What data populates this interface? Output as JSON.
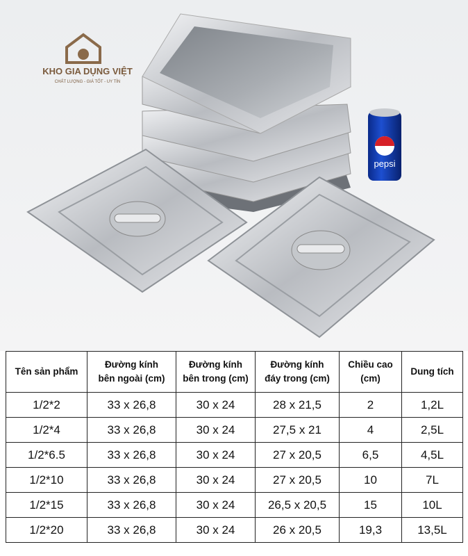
{
  "logo": {
    "name": "KHO GIA DỤNG VIỆT",
    "tagline": "CHẤT LƯỢNG - GIÁ TỐT - UY TÍN"
  },
  "can_label": "pepsi",
  "table": {
    "headers": [
      [
        "Tên sản phẩm"
      ],
      [
        "Đường kính",
        "bên ngoài (cm)"
      ],
      [
        "Đường kính",
        "bên trong (cm)"
      ],
      [
        "Đường kính",
        "đáy trong (cm)"
      ],
      [
        "Chiều cao",
        "(cm)"
      ],
      [
        "Dung tích"
      ]
    ],
    "rows": [
      [
        "1/2*2",
        "33 x 26,8",
        "30 x 24",
        "28 x 21,5",
        "2",
        "1,2L"
      ],
      [
        "1/2*4",
        "33 x 26,8",
        "30 x 24",
        "27,5 x 21",
        "4",
        "2,5L"
      ],
      [
        "1/2*6.5",
        "33 x 26,8",
        "30 x 24",
        "27 x 20,5",
        "6,5",
        "4,5L"
      ],
      [
        "1/2*10",
        "33 x 26,8",
        "30 x 24",
        "27 x 20,5",
        "10",
        "7L"
      ],
      [
        "1/2*15",
        "33 x 26,8",
        "30 x 24",
        "26,5 x 20,5",
        "15",
        "10L"
      ],
      [
        "1/2*20",
        "33 x 26,8",
        "30 x 24",
        "26 x 20,5",
        "19,3",
        "13,5L"
      ]
    ]
  }
}
